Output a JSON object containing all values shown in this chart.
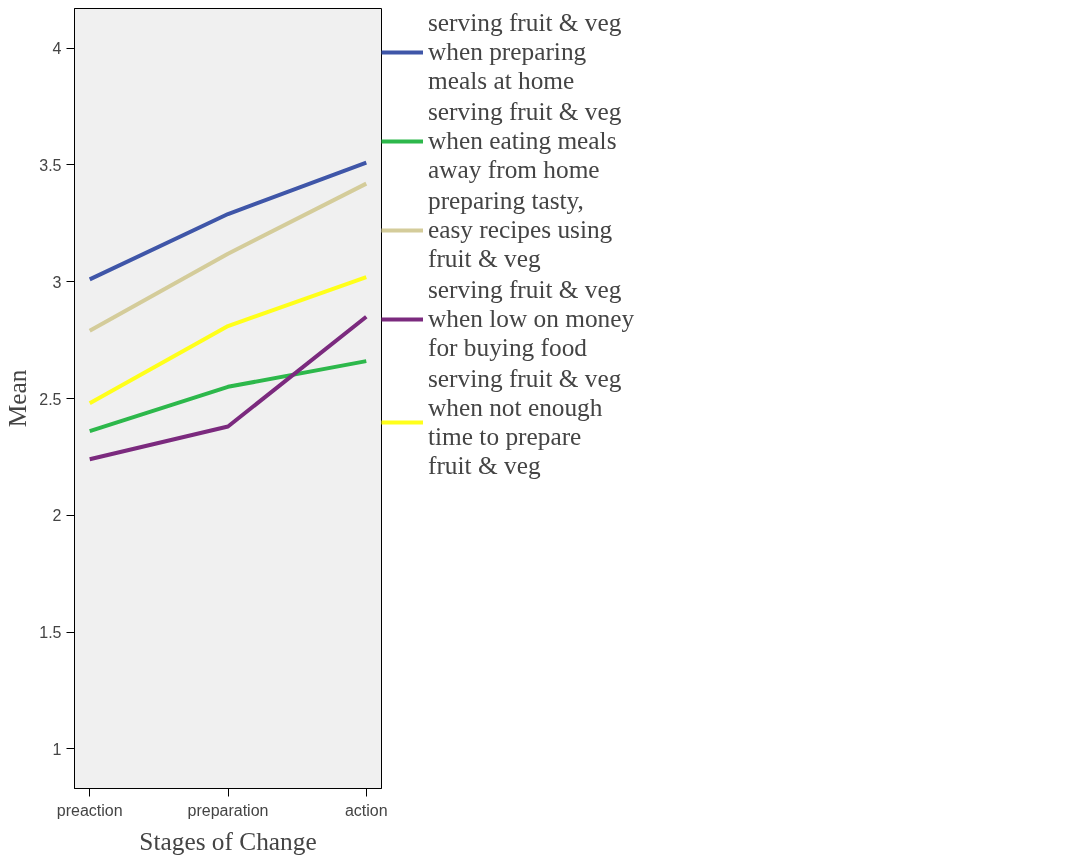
{
  "chart_data": {
    "type": "line",
    "xlabel": "Stages of Change",
    "ylabel": "Mean",
    "categories": [
      "preaction",
      "preparation",
      "action"
    ],
    "series": [
      {
        "name": "serving fruit & veg when preparing meals at home",
        "color": "#3f56a8",
        "values": [
          3.01,
          3.29,
          3.51
        ]
      },
      {
        "name": "serving fruit & veg when eating meals away from home",
        "color": "#2db84b",
        "values": [
          2.36,
          2.55,
          2.66
        ]
      },
      {
        "name": "preparing tasty, easy recipes using fruit & veg",
        "color": "#d4cc9a",
        "values": [
          2.79,
          3.12,
          3.42
        ]
      },
      {
        "name": "serving fruit & veg when low on money for buying food",
        "color": "#7b2a7e",
        "values": [
          2.24,
          2.38,
          2.85
        ]
      },
      {
        "name": "serving fruit & veg when not enough time to prepare fruit & veg",
        "color": "#ffff1a",
        "values": [
          2.48,
          2.81,
          3.02
        ]
      }
    ],
    "ylim": [
      0.83,
      4.17
    ],
    "yticks": [
      1,
      1.5,
      2,
      2.5,
      3,
      3.5,
      4
    ],
    "grid": false,
    "legend": "right",
    "marker": "none",
    "line_style": "solid"
  }
}
